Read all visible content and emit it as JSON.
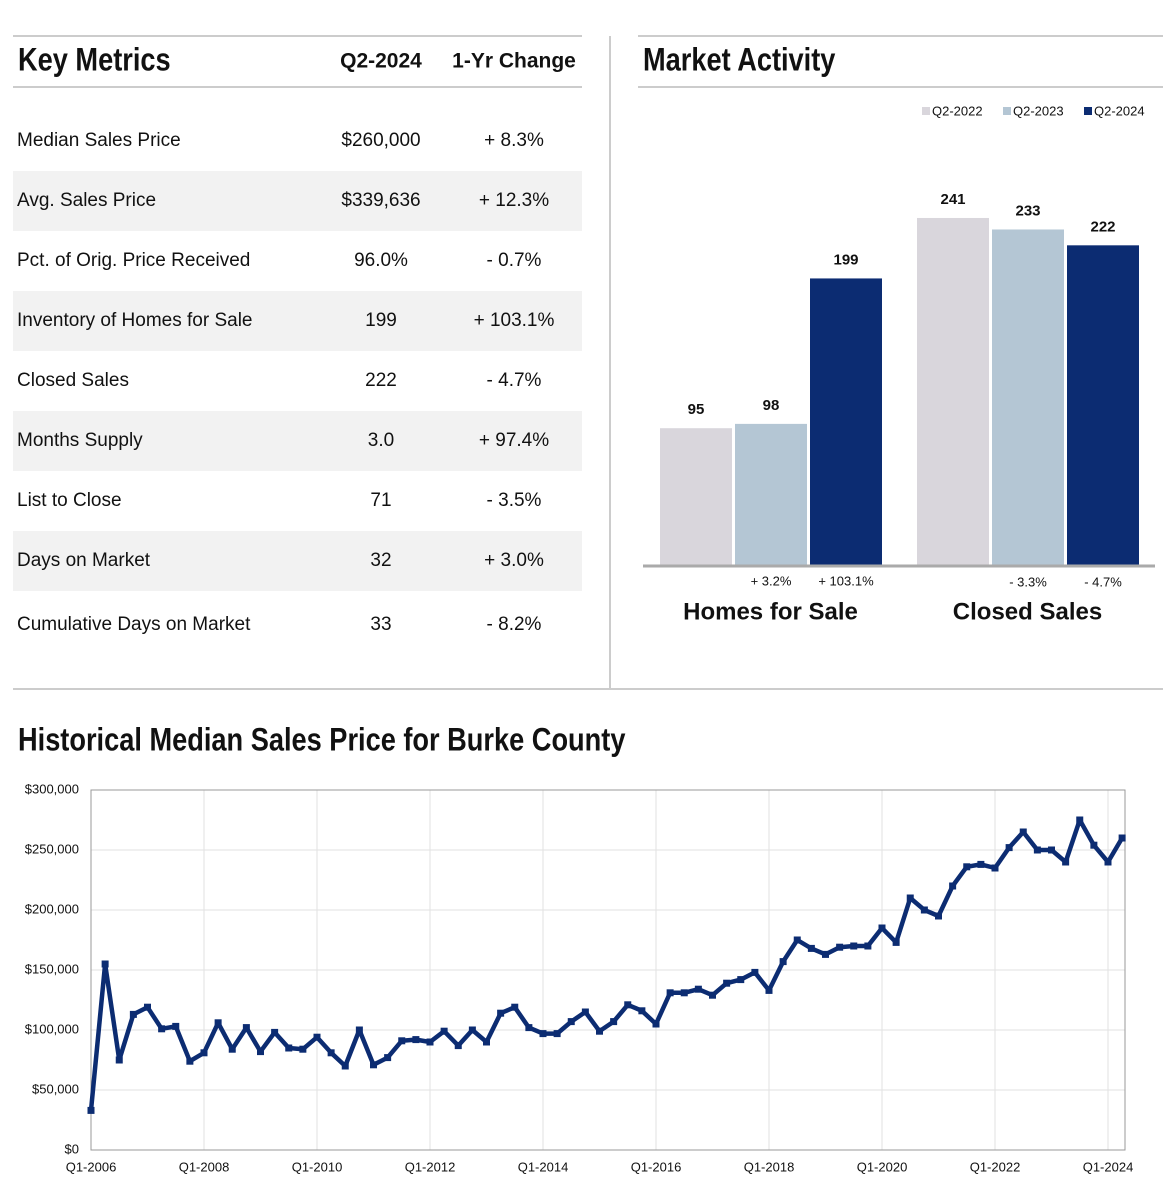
{
  "key_metrics": {
    "title": "Key Metrics",
    "columns": [
      "Q2-2024",
      "1-Yr Change"
    ],
    "rows": [
      [
        "Median Sales Price",
        "$260,000",
        "+ 8.3%"
      ],
      [
        "Avg. Sales Price",
        "$339,636",
        "+ 12.3%"
      ],
      [
        "Pct. of Orig. Price Received",
        "96.0%",
        "- 0.7%"
      ],
      [
        "Inventory of Homes for Sale",
        "199",
        "+ 103.1%"
      ],
      [
        "Closed Sales",
        "222",
        "- 4.7%"
      ],
      [
        "Months Supply",
        "3.0",
        "+ 97.4%"
      ],
      [
        "List to Close",
        "71",
        "- 3.5%"
      ],
      [
        "Days on Market",
        "32",
        "+ 3.0%"
      ],
      [
        "Cumulative Days on Market",
        "33",
        "- 8.2%"
      ]
    ]
  },
  "chart_data": [
    {
      "type": "bar",
      "title": "Market Activity",
      "categories": [
        "Homes for Sale",
        "Closed Sales"
      ],
      "series": [
        {
          "name": "Q2-2022",
          "color": "#d9d6dc",
          "values": [
            95,
            241
          ]
        },
        {
          "name": "Q2-2023",
          "color": "#b4c6d4",
          "values": [
            98,
            233
          ],
          "change_labels": [
            "+ 3.2%",
            "- 3.3%"
          ]
        },
        {
          "name": "Q2-2024",
          "color": "#0c2c72",
          "values": [
            199,
            222
          ],
          "change_labels": [
            "+ 103.1%",
            "- 4.7%"
          ]
        }
      ],
      "legend": "top-right"
    },
    {
      "type": "line",
      "title": "Historical Median Sales Price for Burke County",
      "color": "#0c2c72",
      "grid": true,
      "categories": [
        "Q1-2006",
        null,
        null,
        null,
        null,
        null,
        null,
        null,
        "Q1-2008",
        null,
        null,
        null,
        null,
        null,
        null,
        null,
        "Q1-2010",
        null,
        null,
        null,
        null,
        null,
        null,
        null,
        "Q1-2012",
        null,
        null,
        null,
        null,
        null,
        null,
        null,
        "Q1-2014",
        null,
        null,
        null,
        null,
        null,
        null,
        null,
        "Q1-2016",
        null,
        null,
        null,
        null,
        null,
        null,
        null,
        "Q1-2018",
        null,
        null,
        null,
        null,
        null,
        null,
        null,
        "Q1-2020",
        null,
        null,
        null,
        null,
        null,
        null,
        null,
        "Q1-2022",
        null,
        null,
        null,
        null,
        null,
        null,
        null,
        "Q1-2024",
        null
      ],
      "values": [
        33000,
        155000,
        75000,
        113000,
        119000,
        101000,
        103000,
        74000,
        81000,
        106000,
        84000,
        102000,
        82000,
        98000,
        85000,
        84000,
        94000,
        81000,
        70000,
        100000,
        71000,
        77000,
        91000,
        92000,
        90000,
        99000,
        87000,
        100000,
        90000,
        114000,
        119000,
        102000,
        97000,
        97000,
        107000,
        115000,
        99000,
        107000,
        121000,
        116000,
        105000,
        131000,
        131000,
        134000,
        129000,
        139000,
        142000,
        148000,
        133000,
        157000,
        175000,
        168000,
        163000,
        169000,
        170000,
        170000,
        185000,
        173000,
        210000,
        200000,
        195000,
        220000,
        236000,
        238000,
        235000,
        252000,
        265000,
        250000,
        250000,
        240000,
        275000,
        254000,
        240000,
        260000
      ],
      "ylim": [
        0,
        300000
      ],
      "yticks": [
        {
          "value": 0,
          "label": "$0"
        },
        {
          "value": 50000,
          "label": "$50,000"
        },
        {
          "value": 100000,
          "label": "$100,000"
        },
        {
          "value": 150000,
          "label": "$150,000"
        },
        {
          "value": 200000,
          "label": "$200,000"
        },
        {
          "value": 250000,
          "label": "$250,000"
        },
        {
          "value": 300000,
          "label": "$300,000"
        }
      ]
    }
  ]
}
